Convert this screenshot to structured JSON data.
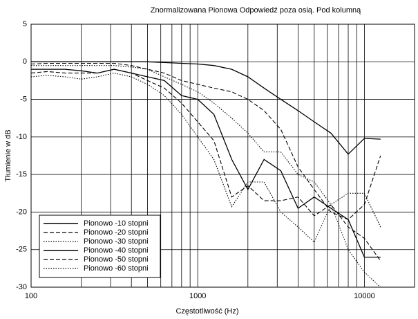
{
  "chart_data": {
    "type": "line",
    "title": "Znormalizowana Pionowa Odpowiedź poza osią. Pod kolumną",
    "x_label": "Częstotliwość (Hz)",
    "y_label": "Tłumienie w dB",
    "x_log": true,
    "grid": true,
    "legend": "lower left",
    "xlim": [
      100,
      20000
    ],
    "xticks": [
      100,
      1000,
      10000
    ],
    "xgrid": [
      200,
      300,
      400,
      500,
      600,
      700,
      800,
      900,
      2000,
      3000,
      4000,
      5000,
      6000,
      7000,
      8000,
      9000
    ],
    "ylim": [
      -30,
      5
    ],
    "yticks": [
      5,
      0,
      -5,
      -10,
      -15,
      -20,
      -25,
      -30
    ],
    "x": [
      100,
      125,
      160,
      200,
      250,
      315,
      400,
      500,
      630,
      800,
      1000,
      1250,
      1600,
      2000,
      2500,
      3150,
      4000,
      5000,
      6300,
      8000,
      10000,
      12500
    ],
    "series": [
      {
        "name": "Pionowo -10 stopni",
        "color": "#000000",
        "dash": "solid",
        "values": [
          0,
          0,
          0,
          0,
          0,
          0,
          0,
          0,
          -0.1,
          -0.2,
          -0.3,
          -0.5,
          -1,
          -2,
          -3.5,
          -5,
          -6.5,
          -8,
          -9.5,
          -12.3,
          -10.2,
          -10.3
        ]
      },
      {
        "name": "Pionowo -20 stopni",
        "color": "#000000",
        "dash": "dashed",
        "values": [
          -0.3,
          -0.2,
          -0.2,
          -0.2,
          -0.2,
          -0.2,
          -0.5,
          -1,
          -1.5,
          -2.5,
          -3,
          -3.5,
          -4,
          -5,
          -6.5,
          -9,
          -14,
          -17,
          -20,
          -21,
          -19,
          -12.5
        ]
      },
      {
        "name": "Pionowo -30 stopni",
        "color": "#000000",
        "dash": "dotted",
        "values": [
          -0.5,
          -0.5,
          -0.5,
          -0.5,
          -0.5,
          -0.5,
          -0.7,
          -1,
          -2,
          -3,
          -4,
          -5.5,
          -7.5,
          -9.5,
          -12,
          -12,
          -15,
          -16,
          -19,
          -25,
          -28,
          -30
        ]
      },
      {
        "name": "Pionowo -40 stopni",
        "color": "#000000",
        "dash": "solid",
        "values": [
          -1,
          -1,
          -1,
          -1.2,
          -1.5,
          -1,
          -1.5,
          -2,
          -2.5,
          -4.5,
          -5,
          -7,
          -13,
          -17,
          -13,
          -14.5,
          -19.5,
          -18,
          -19.5,
          -21,
          -26,
          -26
        ]
      },
      {
        "name": "Pionowo -50 stopni",
        "color": "#000000",
        "dash": "dashed",
        "values": [
          -1.5,
          -1.3,
          -1.5,
          -1.5,
          -1.5,
          -1,
          -1.5,
          -2.5,
          -3.5,
          -5.5,
          -8,
          -10.5,
          -18,
          -16.5,
          -18.5,
          -18.5,
          -18,
          -20.5,
          -19,
          -22,
          -23.5,
          -26.5
        ]
      },
      {
        "name": "Pionowo -60 stopni",
        "color": "#000000",
        "dash": "dotted",
        "values": [
          -2,
          -1.8,
          -2,
          -2.3,
          -2,
          -1.5,
          -2,
          -3,
          -4.5,
          -7,
          -10,
          -13,
          -19.3,
          -16,
          -16,
          -20,
          -22,
          -24,
          -19,
          -17.5,
          -17.5,
          -22
        ]
      }
    ]
  }
}
